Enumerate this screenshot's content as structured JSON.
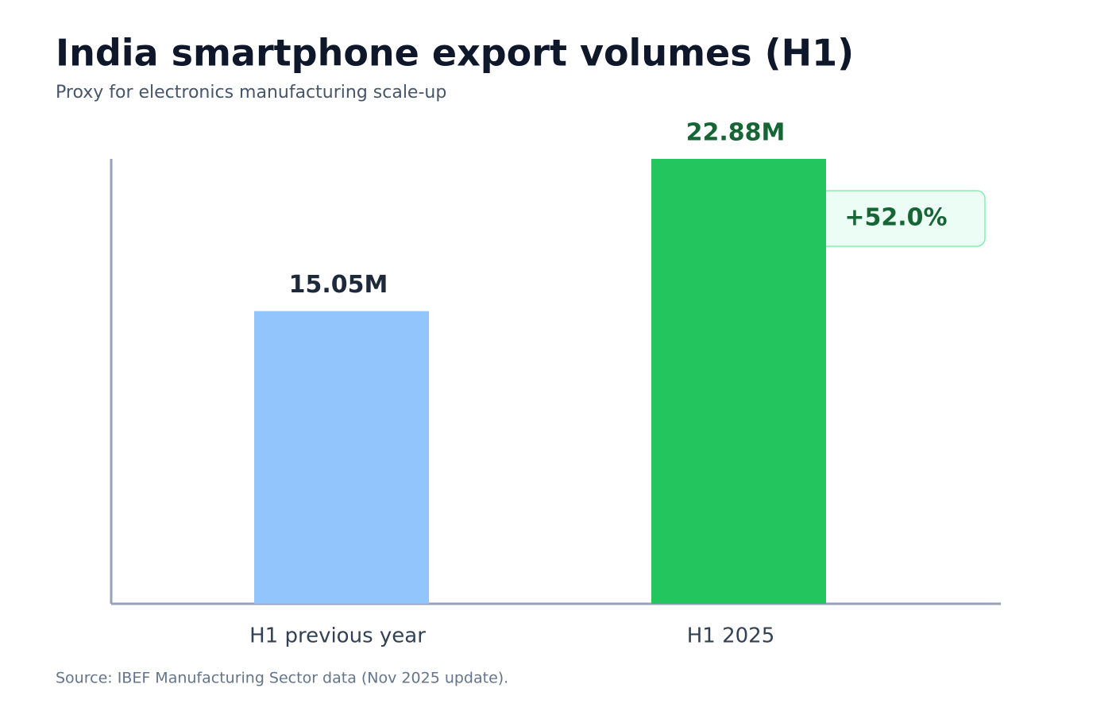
{
  "chart_data": {
    "type": "bar",
    "title": "India smartphone export volumes (H1)",
    "subtitle": "Proxy for electronics manufacturing scale-up",
    "categories": [
      "H1 previous year",
      "H1 2025"
    ],
    "values": [
      15.05,
      22.88
    ],
    "value_labels": [
      "15.05M",
      "22.88M"
    ],
    "colors": [
      "#93c5fd",
      "#22c55e"
    ],
    "label_colors": [
      "#1e293b",
      "#166534"
    ],
    "ylim": [
      0,
      22.88
    ],
    "annotation": "+52.0%",
    "source": "Source: IBEF Manufacturing Sector data (Nov 2025 update)."
  }
}
